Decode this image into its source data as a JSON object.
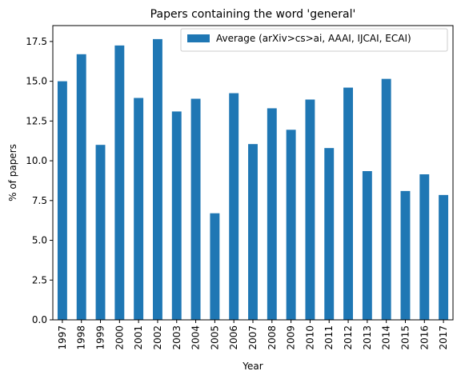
{
  "chart_data": {
    "type": "bar",
    "title": "Papers containing the word 'general'",
    "xlabel": "Year",
    "ylabel": "% of papers",
    "categories": [
      "1997",
      "1998",
      "1999",
      "2000",
      "2001",
      "2002",
      "2003",
      "2004",
      "2005",
      "2006",
      "2007",
      "2008",
      "2009",
      "2010",
      "2011",
      "2012",
      "2013",
      "2014",
      "2015",
      "2016",
      "2017"
    ],
    "series": [
      {
        "name": "Average (arXiv>cs>ai, AAAI, IJCAI, ECAI)",
        "color": "#1f77b4",
        "values": [
          15.0,
          16.7,
          11.0,
          17.25,
          13.95,
          17.65,
          13.1,
          13.9,
          6.7,
          14.25,
          11.05,
          13.3,
          11.95,
          13.85,
          10.8,
          14.6,
          9.35,
          15.15,
          8.1,
          9.15,
          7.85
        ]
      }
    ],
    "ylim": [
      0,
      18.5
    ],
    "yticks": [
      "0.0",
      "2.5",
      "5.0",
      "7.5",
      "10.0",
      "12.5",
      "15.0",
      "17.5"
    ],
    "grid": false,
    "legend_position": "top-right"
  }
}
